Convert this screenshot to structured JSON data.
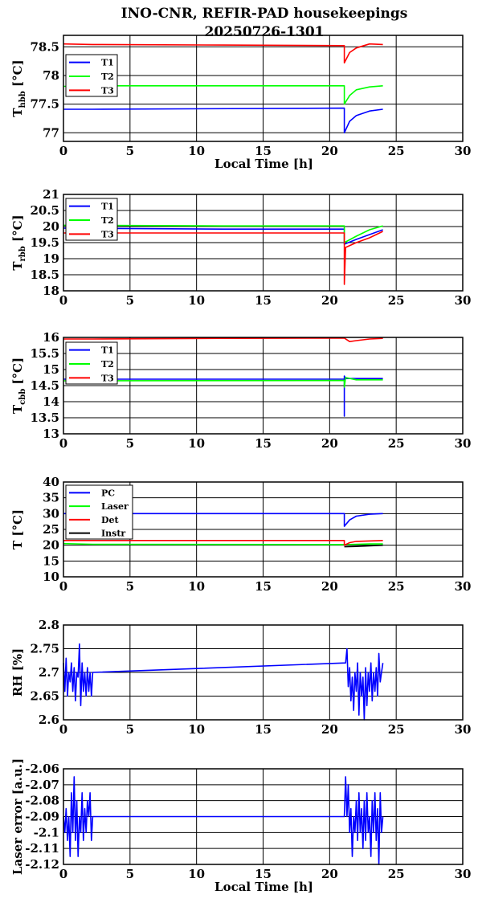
{
  "title_line1": "INO-CNR, REFIR-PAD housekeepings",
  "title_line2": "20250726-1301",
  "colors": {
    "blue": "#0000ff",
    "green": "#00ff00",
    "red": "#ff0000",
    "black": "#000000"
  },
  "chart_data": [
    {
      "type": "line",
      "xlabel": "Local Time [h]",
      "ylabel": "T",
      "ylabel_sub": "hbb",
      "ylabel_unit": " [°C]",
      "xlim": [
        0,
        30
      ],
      "ylim": [
        76.85,
        78.7
      ],
      "xticks": [
        0,
        5,
        10,
        15,
        20,
        25,
        30
      ],
      "yticks": [
        77,
        77.5,
        78,
        78.5
      ],
      "ytick_labels": [
        "77",
        "77.5",
        "78",
        "78.5"
      ],
      "grid": true,
      "legend": "top-left",
      "series": [
        {
          "name": "T1",
          "color": "#0000ff",
          "x": [
            0,
            2.2,
            21.1,
            21.1,
            21.5,
            22,
            23,
            24
          ],
          "y": [
            77.41,
            77.41,
            77.43,
            77.0,
            77.2,
            77.3,
            77.38,
            77.41
          ]
        },
        {
          "name": "T2",
          "color": "#00ff00",
          "x": [
            0,
            2.2,
            21.1,
            21.1,
            21.5,
            22,
            23,
            24
          ],
          "y": [
            77.81,
            77.82,
            77.82,
            77.5,
            77.65,
            77.75,
            77.8,
            77.82
          ]
        },
        {
          "name": "T3",
          "color": "#ff0000",
          "x": [
            0,
            2.2,
            12,
            21.1,
            21.1,
            21.5,
            22,
            23,
            24
          ],
          "y": [
            78.55,
            78.54,
            78.53,
            78.52,
            78.22,
            78.4,
            78.48,
            78.55,
            78.54
          ]
        }
      ]
    },
    {
      "type": "line",
      "xlabel": "",
      "ylabel": "T",
      "ylabel_sub": "rbb",
      "ylabel_unit": " [°C]",
      "xlim": [
        0,
        30
      ],
      "ylim": [
        18,
        21
      ],
      "xticks": [
        0,
        5,
        10,
        15,
        20,
        25,
        30
      ],
      "yticks": [
        18,
        18.5,
        19,
        19.5,
        20,
        20.5,
        21
      ],
      "ytick_labels": [
        "18",
        "18.5",
        "19",
        "19.5",
        "20",
        "20.5",
        "21"
      ],
      "grid": true,
      "legend": "top-left",
      "series": [
        {
          "name": "T1",
          "color": "#0000ff",
          "x": [
            0,
            12,
            21.1,
            21.1,
            22,
            23,
            24
          ],
          "y": [
            19.95,
            19.92,
            19.92,
            19.45,
            19.6,
            19.75,
            19.9
          ]
        },
        {
          "name": "T2",
          "color": "#00ff00",
          "x": [
            0,
            12,
            21.1,
            21.1,
            22,
            23,
            24
          ],
          "y": [
            20.04,
            20.02,
            20.02,
            19.5,
            19.7,
            19.9,
            20.02
          ]
        },
        {
          "name": "T3",
          "color": "#ff0000",
          "x": [
            0,
            12,
            21.1,
            21.1,
            21.2,
            22,
            23,
            24
          ],
          "y": [
            19.8,
            19.8,
            19.8,
            18.2,
            19.35,
            19.5,
            19.65,
            19.85
          ]
        }
      ]
    },
    {
      "type": "line",
      "xlabel": "",
      "ylabel": "T",
      "ylabel_sub": "cbb",
      "ylabel_unit": " [°C]",
      "xlim": [
        0,
        30
      ],
      "ylim": [
        13,
        16
      ],
      "xticks": [
        0,
        5,
        10,
        15,
        20,
        25,
        30
      ],
      "yticks": [
        13,
        13.5,
        14,
        14.5,
        15,
        15.5,
        16
      ],
      "ytick_labels": [
        "13",
        "13.5",
        "14",
        "14.5",
        "15",
        "15.5",
        "16"
      ],
      "grid": true,
      "legend": "top-left",
      "series": [
        {
          "name": "T1",
          "color": "#0000ff",
          "x": [
            0,
            21.1,
            21.1,
            21.1,
            21.2,
            22,
            24
          ],
          "y": [
            14.7,
            14.7,
            13.55,
            14.8,
            14.72,
            14.72,
            14.72
          ]
        },
        {
          "name": "T2",
          "color": "#00ff00",
          "x": [
            0,
            21.1,
            21.1,
            21.2,
            22,
            24
          ],
          "y": [
            14.65,
            14.66,
            14.45,
            14.75,
            14.68,
            14.68
          ]
        },
        {
          "name": "T3",
          "color": "#ff0000",
          "x": [
            0,
            2.2,
            12,
            21.1,
            21.5,
            22,
            23,
            24
          ],
          "y": [
            15.95,
            15.95,
            15.97,
            15.98,
            15.87,
            15.9,
            15.95,
            15.97
          ]
        }
      ]
    },
    {
      "type": "line",
      "xlabel": "",
      "ylabel": "T [°C]",
      "ylabel_sub": "",
      "ylabel_unit": "",
      "xlim": [
        0,
        30
      ],
      "ylim": [
        10,
        40
      ],
      "xticks": [
        0,
        5,
        10,
        15,
        20,
        25,
        30
      ],
      "yticks": [
        10,
        15,
        20,
        25,
        30,
        35,
        40
      ],
      "ytick_labels": [
        "10",
        "15",
        "20",
        "25",
        "30",
        "35",
        "40"
      ],
      "grid": true,
      "legend": "top-left",
      "series": [
        {
          "name": "PC",
          "color": "#0000ff",
          "x": [
            0,
            21.1,
            21.1,
            21.5,
            22,
            23,
            24
          ],
          "y": [
            30,
            30,
            26,
            28,
            29.2,
            29.8,
            30
          ]
        },
        {
          "name": "Laser",
          "color": "#00ff00",
          "x": [
            0,
            2.2,
            21.1,
            22,
            23,
            24
          ],
          "y": [
            20.5,
            20.3,
            20.2,
            20.3,
            20.4,
            20.4
          ]
        },
        {
          "name": "Det",
          "color": "#ff0000",
          "x": [
            0,
            21.1,
            21.1,
            21.5,
            22,
            24
          ],
          "y": [
            21.5,
            21.5,
            20,
            20.8,
            21.2,
            21.5
          ]
        },
        {
          "name": "Instr",
          "color": "#000000",
          "x": [
            21.1,
            22,
            23,
            24
          ],
          "y": [
            19.5,
            19.6,
            19.8,
            20
          ]
        }
      ]
    },
    {
      "type": "line",
      "xlabel": "",
      "ylabel": "RH [%]",
      "ylabel_sub": "",
      "ylabel_unit": "",
      "xlim": [
        0,
        30
      ],
      "ylim": [
        2.6,
        2.8
      ],
      "xticks": [
        0,
        5,
        10,
        15,
        20,
        25,
        30
      ],
      "yticks": [
        2.6,
        2.65,
        2.7,
        2.75,
        2.8
      ],
      "ytick_labels": [
        "2.6",
        "2.65",
        "2.7",
        "2.75",
        "2.8"
      ],
      "grid": true,
      "legend": "none",
      "series": [
        {
          "color": "#0000ff",
          "x": [
            0,
            0.1,
            0.2,
            0.3,
            0.4,
            0.5,
            0.6,
            0.7,
            0.8,
            0.9,
            1.0,
            1.1,
            1.2,
            1.3,
            1.4,
            1.5,
            1.6,
            1.7,
            1.8,
            1.9,
            2.0,
            2.1,
            2.2,
            21.2,
            21.3,
            21.4,
            21.5,
            21.6,
            21.7,
            21.8,
            21.9,
            22.0,
            22.1,
            22.2,
            22.3,
            22.4,
            22.5,
            22.6,
            22.7,
            22.8,
            22.9,
            23.0,
            23.1,
            23.2,
            23.3,
            23.4,
            23.5,
            23.6,
            23.7,
            23.8,
            23.9,
            24.0
          ],
          "y": [
            2.72,
            2.66,
            2.73,
            2.65,
            2.7,
            2.68,
            2.72,
            2.66,
            2.71,
            2.64,
            2.7,
            2.69,
            2.76,
            2.63,
            2.72,
            2.66,
            2.7,
            2.65,
            2.71,
            2.66,
            2.7,
            2.65,
            2.7,
            2.72,
            2.75,
            2.67,
            2.71,
            2.64,
            2.69,
            2.62,
            2.7,
            2.66,
            2.72,
            2.61,
            2.7,
            2.65,
            2.69,
            2.6,
            2.71,
            2.63,
            2.7,
            2.66,
            2.72,
            2.64,
            2.7,
            2.66,
            2.71,
            2.65,
            2.74,
            2.68,
            2.7,
            2.72
          ]
        }
      ]
    },
    {
      "type": "line",
      "xlabel": "Local Time [h]",
      "ylabel": "Laser error [a.u.]",
      "ylabel_sub": "",
      "ylabel_unit": "",
      "xlim": [
        0,
        30
      ],
      "ylim": [
        -2.12,
        -2.06
      ],
      "xticks": [
        0,
        5,
        10,
        15,
        20,
        25,
        30
      ],
      "yticks": [
        -2.12,
        -2.11,
        -2.1,
        -2.09,
        -2.08,
        -2.07,
        -2.06
      ],
      "ytick_labels": [
        "-2.12",
        "-2.11",
        "-2.1",
        "-2.09",
        "-2.08",
        "-2.07",
        "-2.06"
      ],
      "grid": true,
      "legend": "none",
      "series": [
        {
          "color": "#0000ff",
          "x": [
            0,
            0.1,
            0.2,
            0.3,
            0.4,
            0.5,
            0.6,
            0.7,
            0.8,
            0.9,
            1.0,
            1.1,
            1.2,
            1.3,
            1.4,
            1.5,
            1.6,
            1.7,
            1.8,
            1.9,
            2.0,
            2.1,
            2.2,
            21.1,
            21.2,
            21.3,
            21.4,
            21.5,
            21.6,
            21.7,
            21.8,
            21.9,
            22.0,
            22.1,
            22.2,
            22.3,
            22.4,
            22.5,
            22.6,
            22.7,
            22.8,
            22.9,
            23.0,
            23.1,
            23.2,
            23.3,
            23.4,
            23.5,
            23.6,
            23.7,
            23.8,
            23.9,
            24.0
          ],
          "y": [
            -2.09,
            -2.1,
            -2.085,
            -2.105,
            -2.09,
            -2.115,
            -2.075,
            -2.1,
            -2.065,
            -2.105,
            -2.08,
            -2.115,
            -2.09,
            -2.1,
            -2.075,
            -2.105,
            -2.085,
            -2.1,
            -2.08,
            -2.09,
            -2.075,
            -2.105,
            -2.09,
            -2.09,
            -2.065,
            -2.09,
            -2.07,
            -2.1,
            -2.085,
            -2.115,
            -2.09,
            -2.1,
            -2.08,
            -2.105,
            -2.075,
            -2.1,
            -2.085,
            -2.11,
            -2.08,
            -2.105,
            -2.075,
            -2.1,
            -2.09,
            -2.115,
            -2.08,
            -2.1,
            -2.075,
            -2.105,
            -2.085,
            -2.12,
            -2.075,
            -2.1,
            -2.09
          ]
        }
      ]
    }
  ]
}
